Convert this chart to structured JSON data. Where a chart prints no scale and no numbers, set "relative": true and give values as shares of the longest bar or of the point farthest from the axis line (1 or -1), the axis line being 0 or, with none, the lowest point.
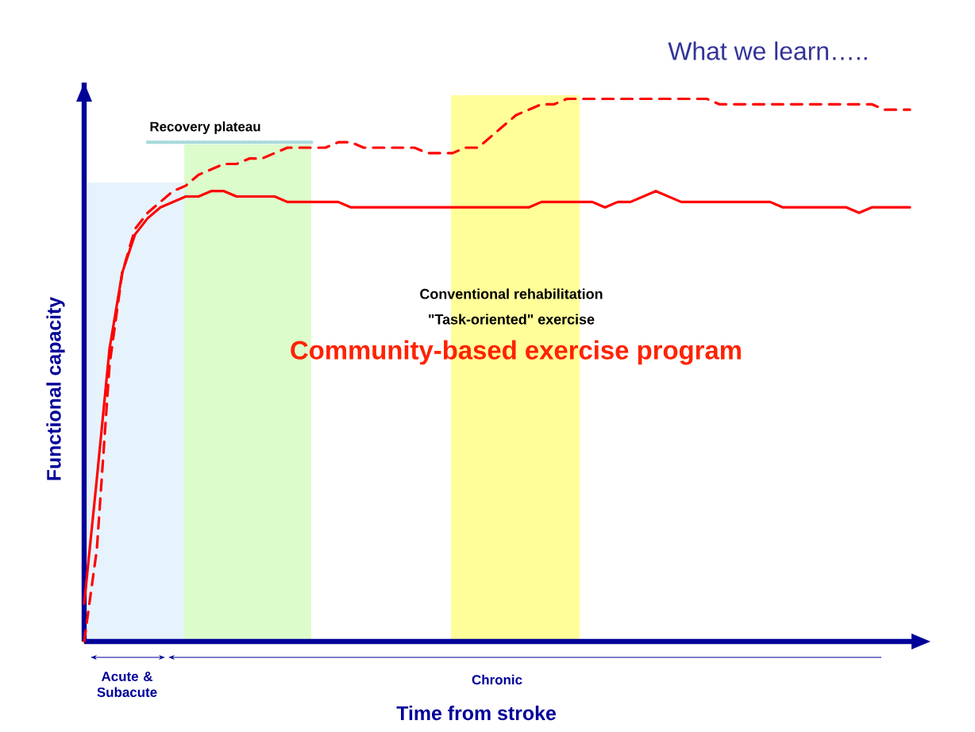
{
  "chart_data": {
    "type": "line",
    "title": "What we learn…..",
    "xlabel": "Time from stroke",
    "ylabel": "Functional capacity",
    "relative": true,
    "annotations": [
      "Conventional rehabilitation",
      "\"Task-oriented\" exercise",
      "Community-based exercise program",
      "Acute & Subacute",
      "Chronic"
    ],
    "categories": [
      null,
      null,
      null,
      null,
      null,
      null,
      null,
      null,
      null,
      null,
      null,
      null,
      null,
      null,
      null,
      null,
      null,
      null,
      null,
      null,
      null,
      null,
      null,
      null,
      null,
      null,
      null,
      null,
      null,
      null,
      null,
      null,
      null,
      null,
      null,
      null,
      null,
      null,
      null,
      null,
      null,
      null,
      null,
      null,
      null,
      null,
      null,
      null,
      null,
      null,
      null,
      null,
      null,
      null,
      null,
      null,
      null,
      null,
      null,
      null,
      null,
      null,
      null,
      null,
      null,
      null
    ],
    "series": [
      {
        "color": "#ff0000",
        "line_style": "solid",
        "values": [
          0.07,
          0.3,
          0.54,
          0.68,
          0.75,
          0.78,
          0.8,
          0.81,
          0.82,
          0.82,
          0.83,
          0.83,
          0.82,
          0.82,
          0.82,
          0.82,
          0.81,
          0.81,
          0.81,
          0.81,
          0.81,
          0.8,
          0.8,
          0.8,
          0.8,
          0.8,
          0.8,
          0.8,
          0.8,
          0.8,
          0.8,
          0.8,
          0.8,
          0.8,
          0.8,
          0.8,
          0.81,
          0.81,
          0.81,
          0.81,
          0.81,
          0.8,
          0.81,
          0.81,
          0.82,
          0.83,
          0.82,
          0.81,
          0.81,
          0.81,
          0.81,
          0.81,
          0.81,
          0.81,
          0.81,
          0.8,
          0.8,
          0.8,
          0.8,
          0.8,
          0.8,
          0.79,
          0.8,
          0.8,
          0.8,
          0.8
        ]
      },
      {
        "color": "#ff0000",
        "line_style": "dashed",
        "values": [
          0.0,
          0.17,
          0.51,
          0.68,
          0.76,
          0.79,
          0.81,
          0.83,
          0.84,
          0.86,
          0.87,
          0.88,
          0.88,
          0.89,
          0.89,
          0.9,
          0.91,
          0.91,
          0.91,
          0.91,
          0.92,
          0.92,
          0.91,
          0.91,
          0.91,
          0.91,
          0.91,
          0.9,
          0.9,
          0.9,
          0.91,
          0.91,
          0.93,
          0.95,
          0.97,
          0.98,
          0.99,
          0.99,
          1.0,
          1.0,
          1.0,
          1.0,
          1.0,
          1.0,
          1.0,
          1.0,
          1.0,
          1.0,
          1.0,
          1.0,
          0.99,
          0.99,
          0.99,
          0.99,
          0.99,
          0.99,
          0.99,
          0.99,
          0.99,
          0.99,
          0.99,
          0.99,
          0.99,
          0.98,
          0.98,
          0.98
        ]
      },
      {
        "name": "Recovery plateau",
        "color": "#a8dadc",
        "line_style": "dotted",
        "values": [
          null,
          null,
          null,
          null,
          null,
          0.92,
          0.92,
          0.92,
          0.92,
          0.92,
          0.92,
          0.92,
          0.92,
          0.92,
          0.92,
          0.92,
          0.92,
          0.92,
          0.92,
          null,
          null,
          null,
          null,
          null,
          null,
          null,
          null,
          null,
          null,
          null,
          null,
          null,
          null,
          null,
          null,
          null,
          null,
          null,
          null,
          null,
          null,
          null,
          null,
          null,
          null,
          null,
          null,
          null,
          null,
          null,
          null,
          null,
          null,
          null,
          null,
          null,
          null,
          null,
          null,
          null,
          null,
          null,
          null,
          null,
          null,
          null
        ]
      }
    ],
    "marker": "none",
    "tick_labels": false
  }
}
